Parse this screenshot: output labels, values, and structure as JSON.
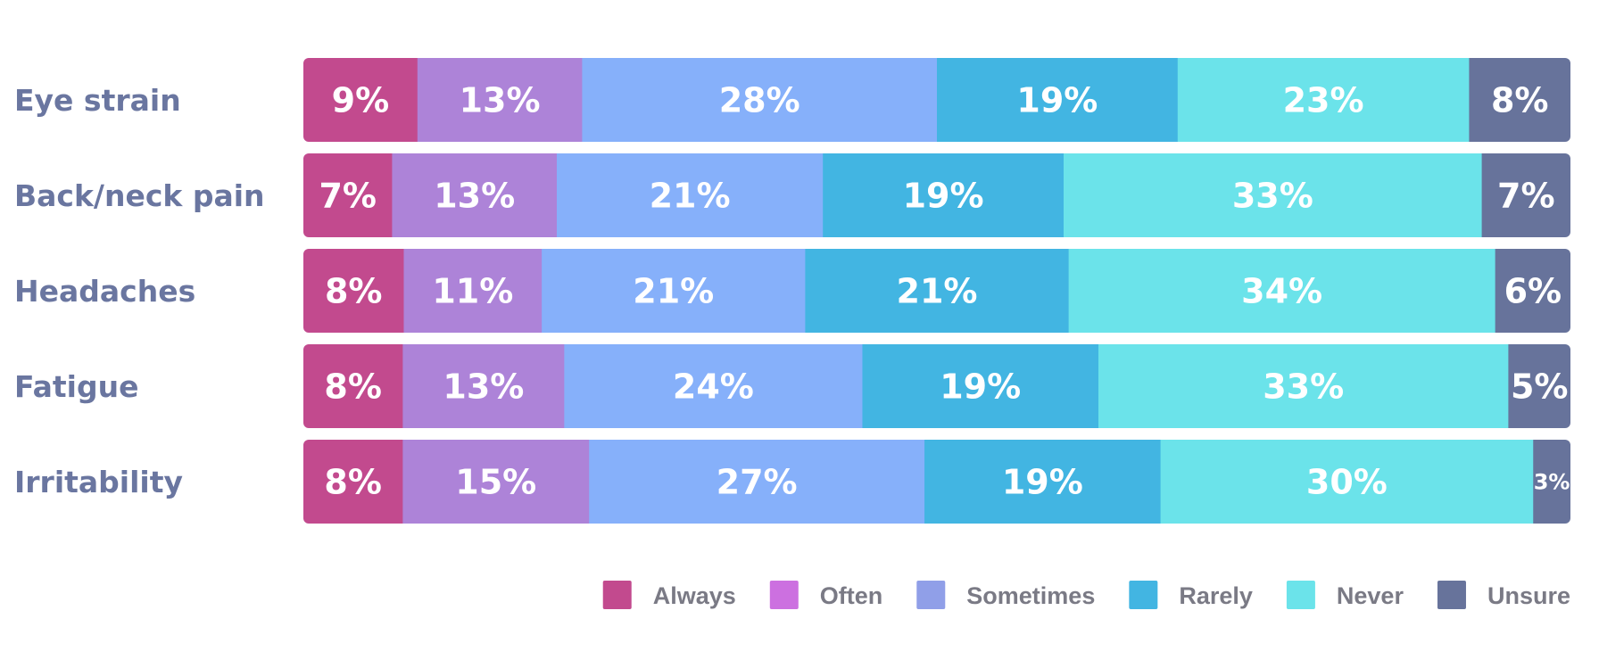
{
  "chart_data": {
    "type": "bar",
    "orientation": "horizontal",
    "stacked": true,
    "normalized_percent": true,
    "categories": [
      "Eye strain",
      "Back/neck pain",
      "Headaches",
      "Fatigue",
      "Irritability"
    ],
    "series": [
      {
        "name": "Always",
        "color": "#c24a8e",
        "values": [
          9,
          7,
          8,
          8,
          8
        ]
      },
      {
        "name": "Often",
        "color": "#ad83d8",
        "values": [
          13,
          13,
          11,
          13,
          15
        ]
      },
      {
        "name": "Sometimes",
        "color": "#86b0fa",
        "values": [
          28,
          21,
          21,
          24,
          27
        ]
      },
      {
        "name": "Rarely",
        "color": "#42b5e2",
        "values": [
          19,
          19,
          21,
          19,
          19
        ]
      },
      {
        "name": "Never",
        "color": "#6be3ea",
        "values": [
          23,
          33,
          34,
          33,
          30
        ]
      },
      {
        "name": "Unsure",
        "color": "#67739b",
        "values": [
          8,
          7,
          6,
          5,
          3
        ]
      }
    ],
    "value_suffix": "%",
    "legend_colors": [
      "#c24a8e",
      "#cc70e0",
      "#909fe8",
      "#42b5e2",
      "#6be3ea",
      "#67739b"
    ],
    "legend_position": "bottom-right",
    "grid": false
  }
}
